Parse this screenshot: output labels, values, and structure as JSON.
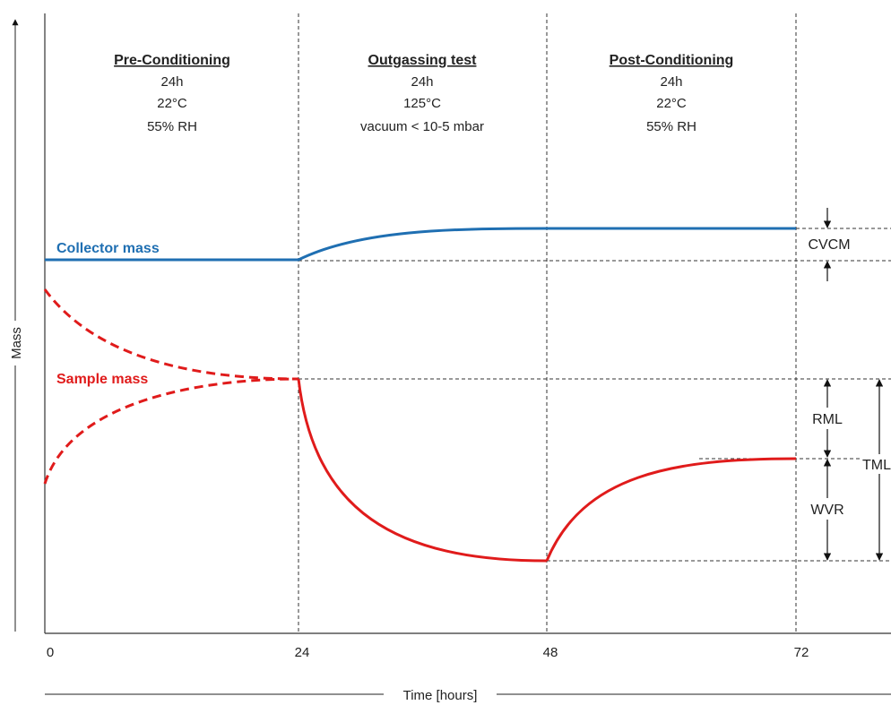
{
  "phases": [
    {
      "title": "Pre-Conditioning",
      "lines": [
        "24h",
        "22°C",
        "55% RH"
      ]
    },
    {
      "title": "Outgassing test",
      "lines": [
        "24h",
        "125°C",
        "vacuum < 10-5 mbar"
      ]
    },
    {
      "title": "Post-Conditioning",
      "lines": [
        "24h",
        "22°C",
        "55% RH"
      ]
    }
  ],
  "axes": {
    "x_label": "Time [hours]",
    "y_label": "Mass",
    "x_ticks": [
      "0",
      "24",
      "48",
      "72"
    ]
  },
  "series": {
    "collector": {
      "label": "Collector mass",
      "color": "#1f6fb2"
    },
    "sample": {
      "label": "Sample mass",
      "color": "#e01b1b"
    }
  },
  "measurements": {
    "cvcm": "CVCM",
    "rml": "RML",
    "wvr": "WVR",
    "tml": "TML"
  }
}
